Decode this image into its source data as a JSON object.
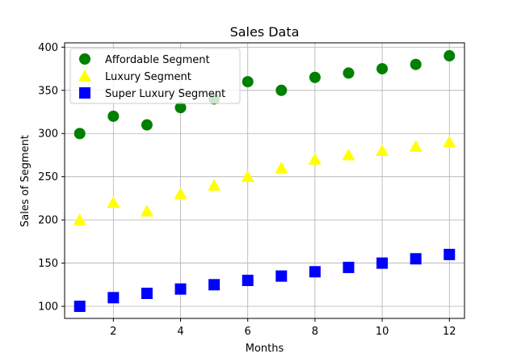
{
  "chart_data": {
    "type": "scatter",
    "title": "Sales Data",
    "xlabel": "Months",
    "ylabel": "Sales of Segment",
    "x": [
      1,
      2,
      3,
      4,
      5,
      6,
      7,
      8,
      9,
      10,
      11,
      12
    ],
    "xlim": [
      0.55,
      12.45
    ],
    "ylim": [
      86,
      405
    ],
    "xticks": [
      2,
      4,
      6,
      8,
      10,
      12
    ],
    "yticks": [
      100,
      150,
      200,
      250,
      300,
      350,
      400
    ],
    "grid": true,
    "legend_position": "top-left",
    "series": [
      {
        "name": "Affordable Segment",
        "marker": "circle",
        "color": "#008000",
        "values": [
          300,
          320,
          310,
          330,
          340,
          360,
          350,
          365,
          370,
          375,
          380,
          390
        ]
      },
      {
        "name": "Luxury Segment",
        "marker": "triangle",
        "color": "#ffff00",
        "values": [
          200,
          220,
          210,
          230,
          240,
          250,
          260,
          270,
          275,
          280,
          285,
          290
        ]
      },
      {
        "name": "Super Luxury Segment",
        "marker": "square",
        "color": "#0000ff",
        "values": [
          100,
          110,
          115,
          120,
          125,
          130,
          135,
          140,
          145,
          150,
          155,
          160
        ]
      }
    ]
  }
}
